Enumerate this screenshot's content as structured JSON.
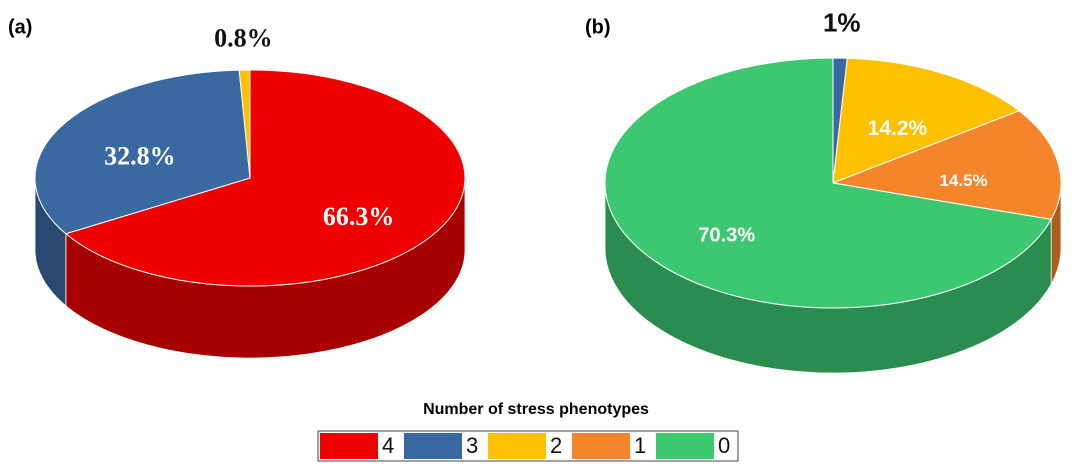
{
  "chart_data": [
    {
      "type": "pie",
      "title": "(a)",
      "categories": [
        "4",
        "3",
        "2"
      ],
      "values": [
        66.3,
        32.8,
        0.8
      ],
      "value_labels": [
        "66.3%",
        "32.8%",
        "0.8%"
      ],
      "colors": [
        "#ee0000",
        "#3a68a0",
        "#ffc000"
      ]
    },
    {
      "type": "pie",
      "title": "(b)",
      "categories": [
        "3",
        "2",
        "1",
        "0"
      ],
      "values": [
        1,
        14.2,
        14.5,
        70.3
      ],
      "value_labels": [
        "1%",
        "14.2%",
        "14.5%",
        "70.3%"
      ],
      "colors": [
        "#3a68a0",
        "#ffc000",
        "#f5852a",
        "#3cc870"
      ]
    }
  ],
  "legend": {
    "title": "Number of stress phenotypes",
    "items": [
      {
        "name": "4",
        "color": "#ee0000"
      },
      {
        "name": "3",
        "color": "#3a68a0"
      },
      {
        "name": "2",
        "color": "#ffc000"
      },
      {
        "name": "1",
        "color": "#f5852a"
      },
      {
        "name": "0",
        "color": "#3cc870"
      }
    ]
  }
}
